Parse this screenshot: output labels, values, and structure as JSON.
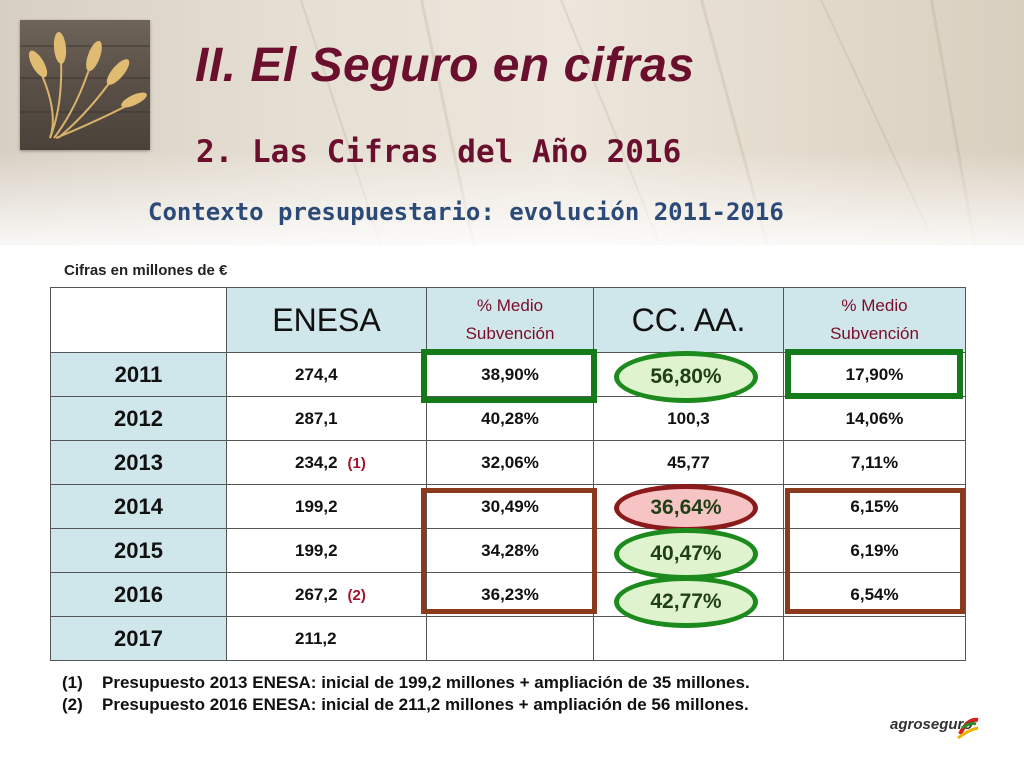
{
  "header": {
    "title": "II. El Seguro en cifras",
    "subtitle": "2. Las Cifras del Año 2016",
    "context": "Contexto presupuestario: evolución 2011-2016"
  },
  "units_note": "Cifras en millones de €",
  "table": {
    "columns": [
      "",
      "ENESA",
      "% Medio Subvención",
      "CC. AA.",
      "% Medio Subvención"
    ],
    "col_small_line1": "% Medio",
    "col_small_line2": "Subvención",
    "rows": [
      {
        "year": "2011",
        "enesa": "274,4",
        "enesa_note": "",
        "pct_enesa": "38,90%",
        "ccaa": "56,80%",
        "pct_ccaa": "17,90%"
      },
      {
        "year": "2012",
        "enesa": "287,1",
        "enesa_note": "",
        "pct_enesa": "40,28%",
        "ccaa": "100,3",
        "pct_ccaa": "14,06%"
      },
      {
        "year": "2013",
        "enesa": "234,2",
        "enesa_note": "(1)",
        "pct_enesa": "32,06%",
        "ccaa": "45,77",
        "pct_ccaa": "7,11%"
      },
      {
        "year": "2014",
        "enesa": "199,2",
        "enesa_note": "",
        "pct_enesa": "30,49%",
        "ccaa": "36,64%",
        "pct_ccaa": "6,15%"
      },
      {
        "year": "2015",
        "enesa": "199,2",
        "enesa_note": "",
        "pct_enesa": "34,28%",
        "ccaa": "40,47%",
        "pct_ccaa": "6,19%"
      },
      {
        "year": "2016",
        "enesa": "267,2",
        "enesa_note": "(2)",
        "pct_enesa": "36,23%",
        "ccaa": "42,77%",
        "pct_ccaa": "6,54%"
      },
      {
        "year": "2017",
        "enesa": "211,2",
        "enesa_note": "",
        "pct_enesa": "",
        "ccaa": "",
        "pct_ccaa": ""
      }
    ]
  },
  "footnotes": [
    {
      "num": "(1)",
      "text": "Presupuesto 2013 ENESA: inicial de 199,2 millones + ampliación de 35 millones."
    },
    {
      "num": "(2)",
      "text": "Presupuesto 2016 ENESA: inicial de 211,2 millones + ampliación de 56 millones."
    }
  ],
  "logo": {
    "text": "agroseguro"
  },
  "colors": {
    "title": "#6b0f2e",
    "context": "#2b4a78",
    "header_cell": "#cfe6ea",
    "green_highlight": "#157a1a",
    "brown_highlight": "#8b3a1c"
  }
}
